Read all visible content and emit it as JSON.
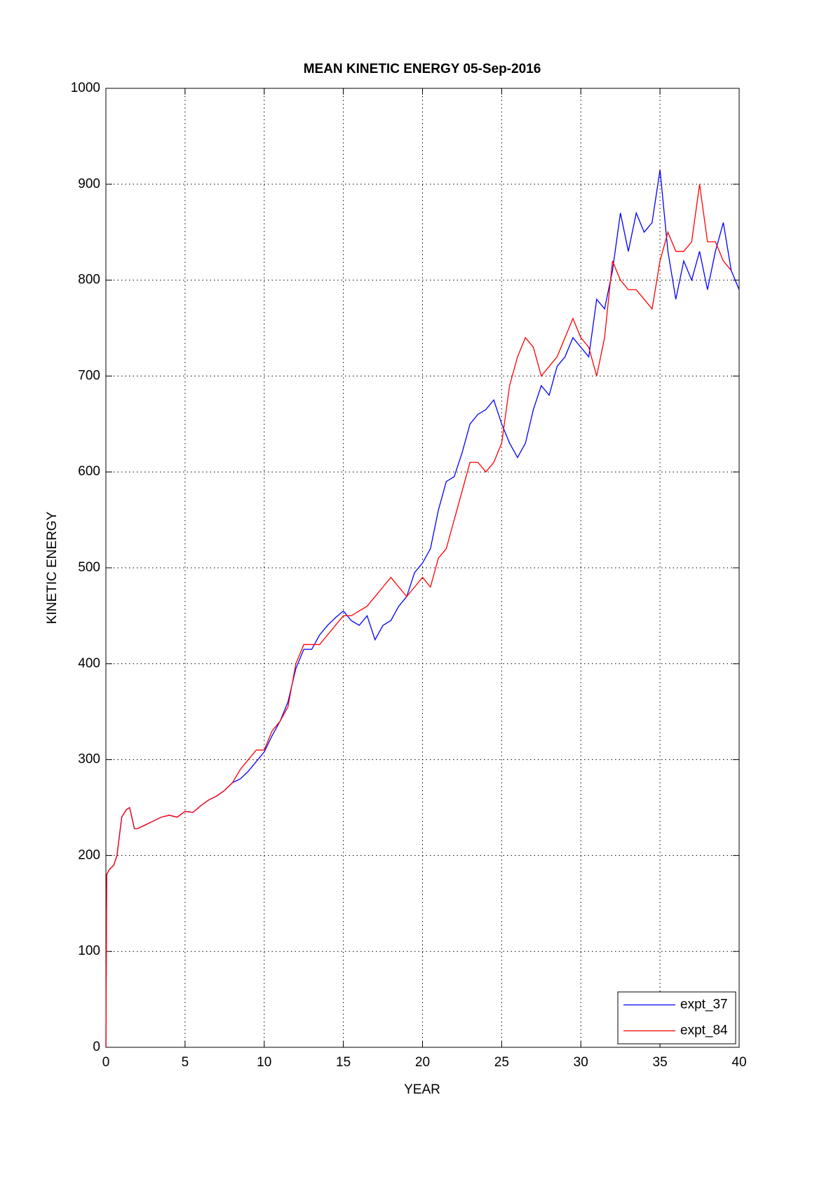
{
  "chart_data": {
    "type": "line",
    "title": "MEAN KINETIC ENERGY 05-Sep-2016",
    "xlabel": "YEAR",
    "ylabel": "KINETIC ENERGY",
    "x": [
      0,
      0.05,
      0.2,
      0.5,
      0.7,
      1,
      1.3,
      1.5,
      1.8,
      2,
      2.5,
      3,
      3.5,
      4,
      4.5,
      5,
      5.5,
      6,
      6.5,
      7,
      7.5,
      8,
      8.5,
      9,
      9.5,
      10,
      10.5,
      11,
      11.5,
      12,
      12.5,
      13,
      13.5,
      14,
      14.5,
      15,
      15.5,
      16,
      16.5,
      17,
      17.5,
      18,
      18.5,
      19,
      19.5,
      20,
      20.5,
      21,
      21.5,
      22,
      22.5,
      23,
      23.5,
      24,
      24.5,
      25,
      25.5,
      26,
      26.5,
      27,
      27.5,
      28,
      28.5,
      29,
      29.5,
      30,
      30.5,
      31,
      31.5,
      32,
      32.5,
      33,
      33.5,
      34,
      34.5,
      35,
      35.5,
      36,
      36.5,
      37,
      37.5,
      38,
      38.5,
      39,
      39.5,
      40
    ],
    "series": [
      {
        "name": "expt_37",
        "color": "#0000ff",
        "values": [
          0,
          180,
          185,
          190,
          200,
          240,
          248,
          250,
          228,
          228,
          232,
          236,
          240,
          242,
          240,
          246,
          245,
          252,
          258,
          262,
          268,
          276,
          280,
          288,
          298,
          308,
          325,
          340,
          360,
          395,
          415,
          415,
          430,
          440,
          448,
          455,
          445,
          440,
          450,
          425,
          440,
          445,
          460,
          470,
          495,
          505,
          520,
          560,
          590,
          595,
          620,
          650,
          660,
          665,
          675,
          650,
          630,
          615,
          630,
          665,
          690,
          680,
          710,
          720,
          740,
          730,
          720,
          780,
          770,
          810,
          870,
          830,
          870,
          850,
          860,
          915,
          830,
          780,
          820,
          800,
          830,
          790,
          830,
          860,
          810,
          790
        ]
      },
      {
        "name": "expt_84",
        "color": "#ff0000",
        "values": [
          0,
          180,
          185,
          190,
          200,
          240,
          248,
          250,
          228,
          228,
          232,
          236,
          240,
          242,
          240,
          246,
          245,
          252,
          258,
          262,
          268,
          276,
          290,
          300,
          310,
          310,
          330,
          340,
          355,
          400,
          420,
          420,
          420,
          430,
          440,
          450,
          450,
          455,
          460,
          470,
          480,
          490,
          480,
          470,
          480,
          490,
          480,
          510,
          520,
          550,
          580,
          610,
          610,
          600,
          610,
          630,
          690,
          720,
          740,
          730,
          700,
          710,
          720,
          740,
          760,
          740,
          730,
          700,
          740,
          820,
          800,
          790,
          790,
          780,
          770,
          820,
          850,
          830,
          830,
          840,
          900,
          840,
          840,
          820,
          810,
          null
        ]
      }
    ],
    "xlim": [
      0,
      40
    ],
    "xticks": [
      0,
      5,
      10,
      15,
      20,
      25,
      30,
      35,
      40
    ],
    "ylim": [
      0,
      1000
    ],
    "yticks": [
      0,
      100,
      200,
      300,
      400,
      500,
      600,
      700,
      800,
      900,
      1000
    ],
    "grid": true,
    "legend": "lower right"
  }
}
